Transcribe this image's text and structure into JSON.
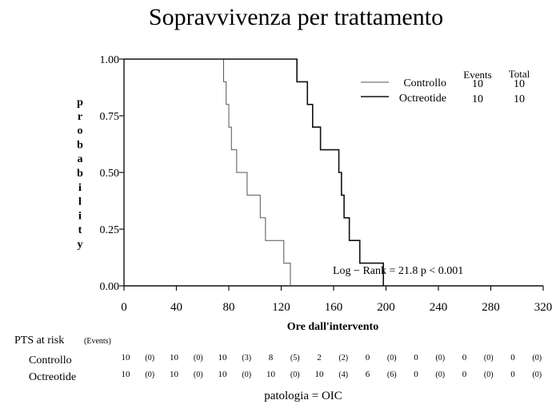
{
  "chart_data": {
    "type": "line",
    "title": "Sopravvivenza per trattamento",
    "xlabel": "Ore dall'intervento",
    "ylabel": "probability",
    "xlim": [
      0,
      320
    ],
    "ylim": [
      0,
      1
    ],
    "x_ticks": [
      "0",
      "40",
      "80",
      "120",
      "160",
      "200",
      "240",
      "280",
      "320"
    ],
    "y_ticks": [
      "0.00",
      "0.25",
      "0.50",
      "0.75",
      "1.00"
    ],
    "grid": false,
    "legend_position": "top-right",
    "legend_header": {
      "events": "Events",
      "total": "Total"
    },
    "series": [
      {
        "name": "Controllo",
        "events": "10",
        "total": "10",
        "steps": [
          [
            0,
            1.0
          ],
          [
            76,
            0.9
          ],
          [
            78,
            0.8
          ],
          [
            80,
            0.7
          ],
          [
            82,
            0.6
          ],
          [
            86,
            0.5
          ],
          [
            94,
            0.4
          ],
          [
            104,
            0.3
          ],
          [
            108,
            0.2
          ],
          [
            122,
            0.1
          ],
          [
            127,
            0.0
          ]
        ]
      },
      {
        "name": "Octreotide",
        "events": "10",
        "total": "10",
        "steps": [
          [
            0,
            1.0
          ],
          [
            132,
            0.9
          ],
          [
            140,
            0.8
          ],
          [
            144,
            0.7
          ],
          [
            150,
            0.6
          ],
          [
            164,
            0.5
          ],
          [
            166,
            0.4
          ],
          [
            168,
            0.3
          ],
          [
            172,
            0.2
          ],
          [
            180,
            0.1
          ],
          [
            198,
            0.0
          ]
        ]
      }
    ],
    "annotation": "Log − Rank = 21.8   p < 0.001"
  },
  "risk_table": {
    "title": "PTS at risk",
    "subtitle": "(Events)",
    "rows": [
      {
        "label": "Controllo",
        "cells": [
          [
            "10",
            "(0)"
          ],
          [
            "10",
            "(0)"
          ],
          [
            "10",
            "(3)"
          ],
          [
            "8",
            "(5)"
          ],
          [
            "2",
            "(2)"
          ],
          [
            "0",
            "(0)"
          ],
          [
            "0",
            "(0)"
          ],
          [
            "0",
            "(0)"
          ],
          [
            "0",
            "(0)"
          ]
        ]
      },
      {
        "label": "Octreotide",
        "cells": [
          [
            "10",
            "(0)"
          ],
          [
            "10",
            "(0)"
          ],
          [
            "10",
            "(0)"
          ],
          [
            "10",
            "(0)"
          ],
          [
            "10",
            "(4)"
          ],
          [
            "6",
            "(6)"
          ],
          [
            "0",
            "(0)"
          ],
          [
            "0",
            "(0)"
          ],
          [
            "0",
            "(0)"
          ]
        ]
      }
    ]
  },
  "footnote": "patologia = OIC"
}
